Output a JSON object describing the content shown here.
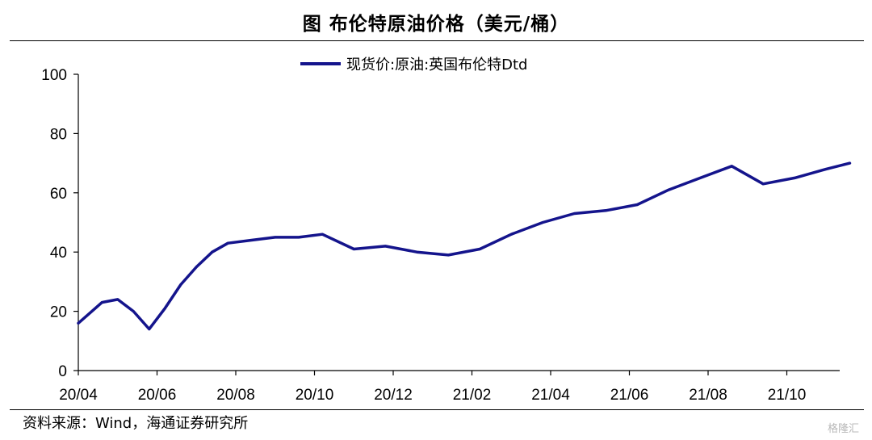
{
  "title": "图  布伦特原油价格（美元/桶）",
  "source": "资料来源：Wind，海通证券研究所",
  "watermark": "格隆汇",
  "colors": {
    "series": "#14148c",
    "axis": "#000000"
  },
  "chart_data": {
    "type": "line",
    "xlabel": "",
    "ylabel": "",
    "ylim": [
      0,
      100
    ],
    "yticks": [
      0,
      20,
      40,
      60,
      80,
      100
    ],
    "xticks": [
      "20/04",
      "20/06",
      "20/08",
      "20/10",
      "20/12",
      "21/02",
      "21/04",
      "21/06",
      "21/08",
      "21/10"
    ],
    "legend": "top-center",
    "grid": false,
    "series": [
      {
        "name": "现货价:原油:英国布伦特Dtd",
        "x": [
          0,
          0.3,
          0.5,
          0.7,
          0.9,
          1.1,
          1.3,
          1.5,
          1.7,
          1.9,
          2.2,
          2.5,
          2.8,
          3.1,
          3.5,
          3.9,
          4.3,
          4.7,
          5.1,
          5.5,
          5.9,
          6.3,
          6.7,
          7.1,
          7.5,
          7.9,
          8.3,
          8.7,
          9.1,
          9.5,
          9.8
        ],
        "values": [
          16,
          23,
          24,
          20,
          14,
          21,
          29,
          35,
          40,
          43,
          44,
          45,
          45,
          46,
          41,
          42,
          40,
          39,
          41,
          46,
          50,
          53,
          54,
          56,
          61,
          65,
          69,
          63,
          65,
          68,
          70
        ]
      }
    ]
  }
}
